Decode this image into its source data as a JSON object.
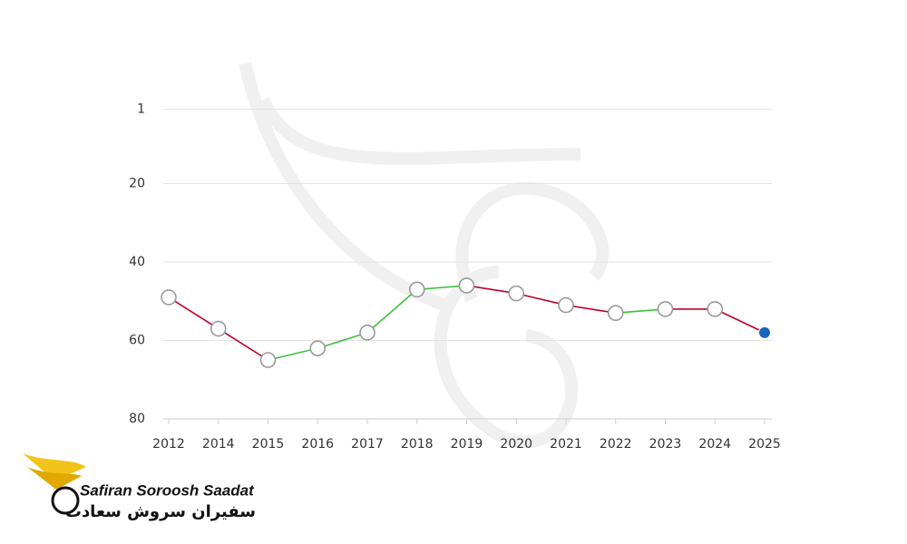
{
  "chart_data": {
    "type": "line",
    "categories": [
      "2012",
      "2014",
      "2015",
      "2016",
      "2017",
      "2018",
      "2019",
      "2020",
      "2021",
      "2022",
      "2023",
      "2024",
      "2025"
    ],
    "values": [
      49,
      57,
      65,
      62,
      58,
      47,
      46,
      48,
      51,
      53,
      52,
      52,
      58
    ],
    "ylim": [
      0,
      80
    ],
    "yticks": [
      1,
      20,
      40,
      60,
      80
    ],
    "y_inverted": true,
    "grid": true,
    "rise_color": "#3cc13b",
    "fall_color": "#c0002a",
    "highlight_color": "#1565c0"
  },
  "logo": {
    "name": "Safiran Soroosh Saadat",
    "name_fa": "سفیران سروش سعادت"
  }
}
